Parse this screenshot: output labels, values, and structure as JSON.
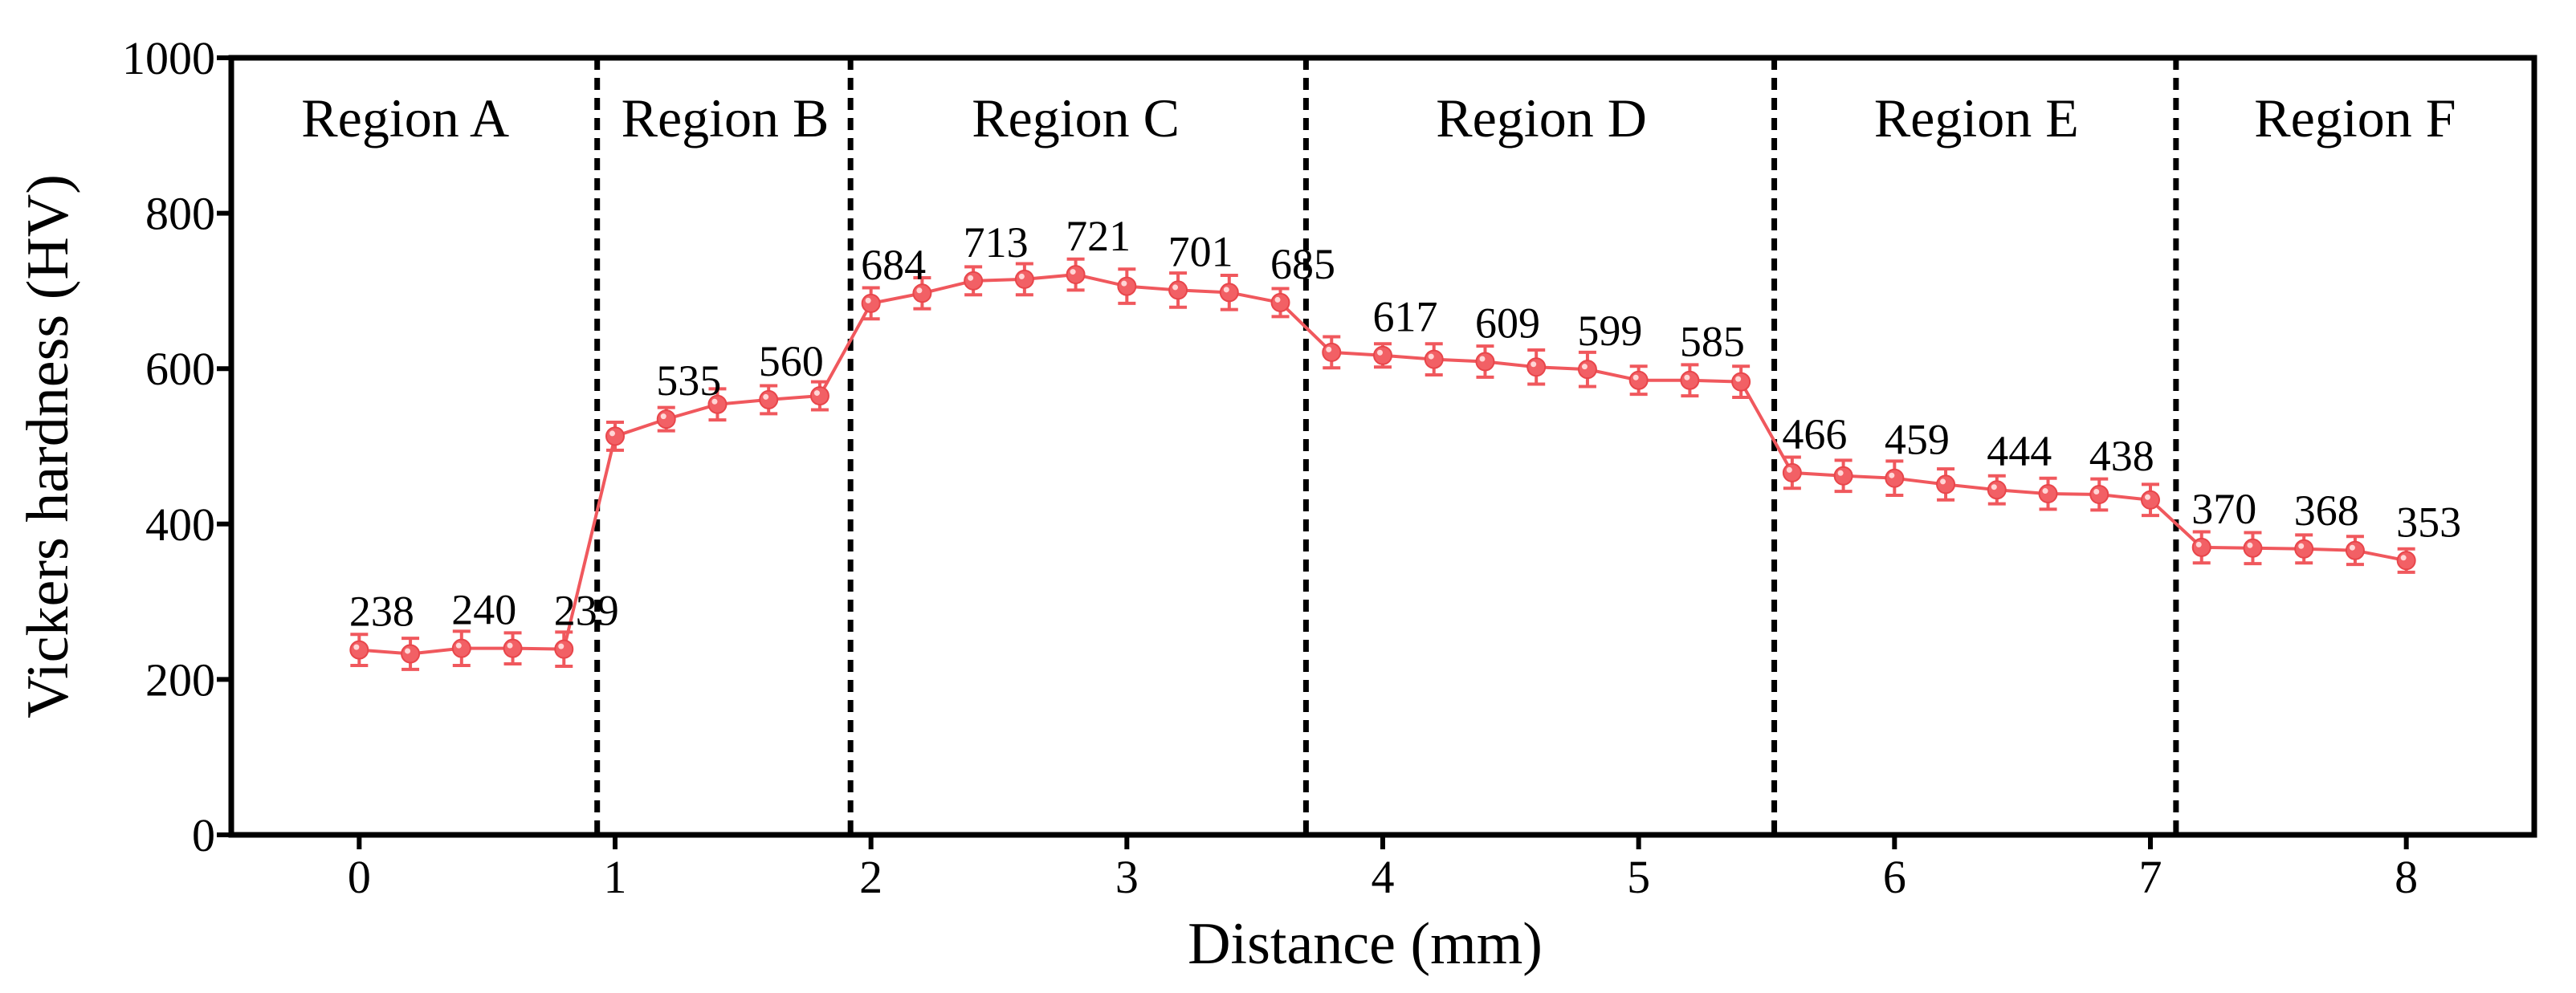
{
  "chart_data": {
    "type": "line",
    "xlabel": "Distance (mm)",
    "ylabel": "Vickers hardness (HV)",
    "xlim": [
      -0.5,
      8.5
    ],
    "ylim": [
      0,
      1000
    ],
    "xticks": [
      "0",
      "1",
      "2",
      "3",
      "4",
      "5",
      "6",
      "7",
      "8"
    ],
    "yticks": [
      "0",
      "200",
      "400",
      "600",
      "800",
      "1000"
    ],
    "grid": false,
    "colors": {
      "series": "#f0585d",
      "marker_fill": "#f26065",
      "axis": "#000000"
    },
    "region_boundaries": [
      0.93,
      1.92,
      3.7,
      5.53,
      7.1
    ],
    "regions": [
      {
        "label": "Region A",
        "center": 0.18
      },
      {
        "label": "Region B",
        "center": 1.43
      },
      {
        "label": "Region C",
        "center": 2.8
      },
      {
        "label": "Region D",
        "center": 4.62
      },
      {
        "label": "Region E",
        "center": 6.32
      },
      {
        "label": "Region F",
        "center": 7.8
      }
    ],
    "series": [
      {
        "name": "Vickers hardness",
        "x": [
          0,
          0.2,
          0.4,
          0.6,
          0.8,
          1.0,
          1.2,
          1.4,
          1.6,
          1.8,
          2.0,
          2.2,
          2.4,
          2.6,
          2.8,
          3.0,
          3.2,
          3.4,
          3.6,
          3.8,
          4.0,
          4.2,
          4.4,
          4.6,
          4.8,
          5.0,
          5.2,
          5.4,
          5.6,
          5.8,
          6.0,
          6.2,
          6.4,
          6.6,
          6.8,
          7.0,
          7.2,
          7.4,
          7.6,
          7.8,
          8.0
        ],
        "y": [
          238,
          233,
          240,
          240,
          239,
          513,
          535,
          554,
          560,
          565,
          684,
          697,
          713,
          715,
          721,
          706,
          701,
          698,
          685,
          621,
          617,
          612,
          609,
          602,
          599,
          585,
          585,
          583,
          466,
          462,
          459,
          451,
          444,
          439,
          438,
          431,
          370,
          369,
          368,
          366,
          353
        ],
        "error": [
          20,
          20,
          22,
          20,
          22,
          18,
          15,
          20,
          18,
          18,
          20,
          20,
          18,
          20,
          20,
          22,
          22,
          22,
          18,
          20,
          15,
          20,
          20,
          22,
          22,
          18,
          20,
          20,
          20,
          20,
          22,
          20,
          18,
          20,
          20,
          20,
          20,
          20,
          18,
          18,
          15
        ]
      }
    ],
    "annotations": [
      {
        "text": "238",
        "x": 0.0,
        "y": 238
      },
      {
        "text": "240",
        "x": 0.4,
        "y": 240
      },
      {
        "text": "239",
        "x": 0.8,
        "y": 239
      },
      {
        "text": "535",
        "x": 1.2,
        "y": 535
      },
      {
        "text": "560",
        "x": 1.6,
        "y": 560
      },
      {
        "text": "684",
        "x": 2.0,
        "y": 684
      },
      {
        "text": "713",
        "x": 2.4,
        "y": 713
      },
      {
        "text": "721",
        "x": 2.8,
        "y": 721
      },
      {
        "text": "701",
        "x": 3.2,
        "y": 701
      },
      {
        "text": "685",
        "x": 3.6,
        "y": 685
      },
      {
        "text": "617",
        "x": 4.0,
        "y": 617
      },
      {
        "text": "609",
        "x": 4.4,
        "y": 609
      },
      {
        "text": "599",
        "x": 4.8,
        "y": 599
      },
      {
        "text": "585",
        "x": 5.2,
        "y": 585
      },
      {
        "text": "466",
        "x": 5.6,
        "y": 466
      },
      {
        "text": "459",
        "x": 6.0,
        "y": 459
      },
      {
        "text": "444",
        "x": 6.4,
        "y": 444
      },
      {
        "text": "438",
        "x": 6.8,
        "y": 438
      },
      {
        "text": "370",
        "x": 7.2,
        "y": 370
      },
      {
        "text": "368",
        "x": 7.6,
        "y": 368
      },
      {
        "text": "353",
        "x": 8.0,
        "y": 353
      }
    ]
  }
}
